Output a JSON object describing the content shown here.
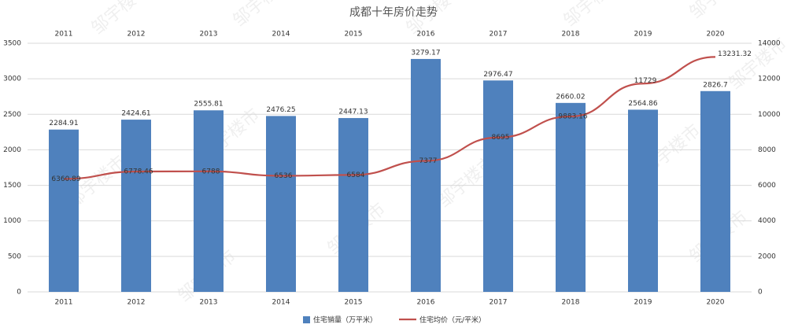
{
  "chart_data": {
    "type": "bar-line",
    "title": "成都十年房价走势",
    "watermark": "邹宇楼市",
    "categories": [
      "2011",
      "2012",
      "2013",
      "2014",
      "2015",
      "2016",
      "2017",
      "2018",
      "2019",
      "2020"
    ],
    "series": [
      {
        "name": "住宅销量（万平米）",
        "type": "bar",
        "color": "#4f81bd",
        "values": [
          2284.91,
          2424.61,
          2555.81,
          2476.25,
          2447.13,
          3279.17,
          2976.47,
          2660.02,
          2564.86,
          2826.7
        ]
      },
      {
        "name": "住宅均价（元/平米）",
        "type": "line",
        "axis": "y2",
        "color": "#c0504d",
        "values": [
          6360.89,
          6778.46,
          6788,
          6536,
          6584,
          7377,
          8695,
          9883.16,
          11729,
          13231.32
        ]
      }
    ],
    "ylim": [
      0,
      3500
    ],
    "yticks": [
      0,
      500,
      1000,
      1500,
      2000,
      2500,
      3000,
      3500
    ],
    "y2lim": [
      0,
      14000
    ],
    "y2ticks": [
      0,
      2000,
      4000,
      6000,
      8000,
      10000,
      12000,
      14000
    ],
    "grid": true,
    "legend": "bottom"
  }
}
